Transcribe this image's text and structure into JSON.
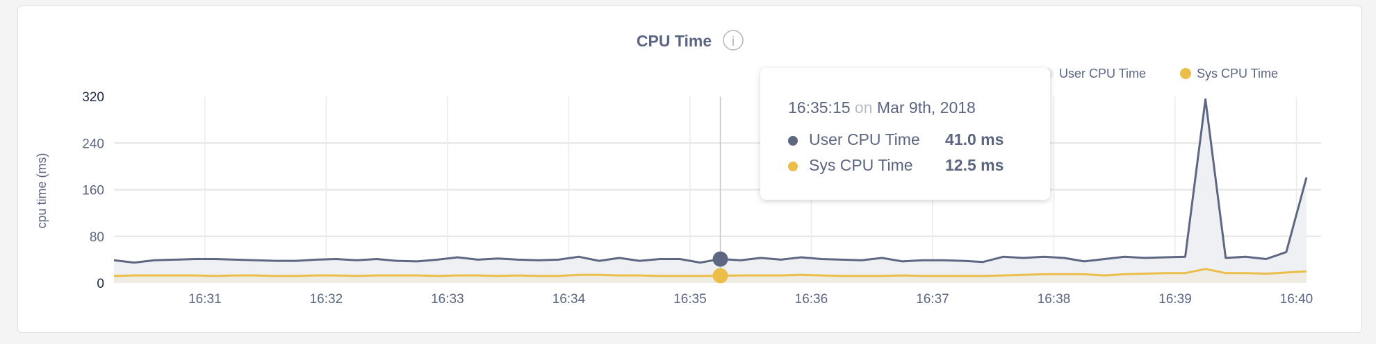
{
  "chart_data": {
    "type": "area",
    "title": "CPU Time",
    "info_icon": "info-circle-icon",
    "ylabel": "cpu time (ms)",
    "xlabel": "",
    "ylim": [
      0,
      320
    ],
    "yticks": [
      "0",
      "80",
      "160",
      "240",
      "320"
    ],
    "xticks": [
      "16:31",
      "16:32",
      "16:33",
      "16:34",
      "16:35",
      "16:36",
      "16:37",
      "16:38",
      "16:39",
      "16:40"
    ],
    "x_start": "16:30:15",
    "x_step_seconds": 10,
    "grid": true,
    "legend_placement": "top-right",
    "series": [
      {
        "name": "User CPU Time",
        "color": "#5d6781",
        "fill": "#eef0f3",
        "values": [
          39,
          35,
          39,
          40,
          41,
          41,
          40,
          39,
          38,
          38,
          40,
          41,
          39,
          41,
          38,
          37,
          40,
          44,
          40,
          42,
          40,
          39,
          40,
          45,
          38,
          43,
          38,
          41,
          41,
          35,
          41,
          39,
          43,
          40,
          44,
          41,
          40,
          39,
          43,
          37,
          39,
          39,
          38,
          36,
          45,
          43,
          45,
          43,
          37,
          41,
          45,
          43,
          44,
          45,
          315,
          43,
          45,
          41,
          53,
          181
        ]
      },
      {
        "name": "Sys CPU Time",
        "color": "#ebbe4a",
        "fill": "#efece3",
        "values": [
          12,
          13,
          13,
          13,
          13,
          12,
          13,
          13,
          12,
          12,
          13,
          13,
          12,
          13,
          13,
          13,
          12,
          13,
          13,
          12,
          13,
          12,
          12,
          14,
          14,
          13,
          13,
          12,
          12,
          12,
          12.5,
          13,
          13,
          13,
          14,
          13,
          12,
          12,
          12,
          13,
          12,
          12,
          12,
          12,
          13,
          14,
          15,
          15,
          15,
          13,
          15,
          16,
          17,
          17,
          24,
          17,
          17,
          16,
          18,
          20
        ]
      }
    ],
    "tooltip": {
      "time": "16:35:15",
      "on": "on",
      "date": "Mar 9th, 2018",
      "index": 30,
      "rows": [
        {
          "label": "User CPU Time",
          "value": "41.0 ms"
        },
        {
          "label": "Sys CPU Time",
          "value": "12.5 ms"
        }
      ]
    }
  }
}
